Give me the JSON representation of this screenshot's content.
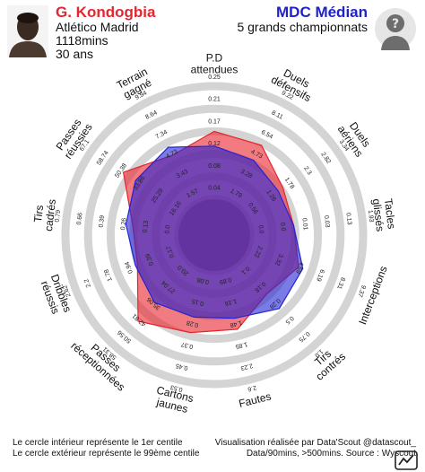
{
  "player": {
    "name": "G. Kondogbia",
    "club": "Atlético Madrid",
    "minutes": "1118mins",
    "age": "30 ans"
  },
  "comparison": {
    "name": "MDC Médian",
    "scope": "5 grands championnats"
  },
  "footer": {
    "left_line1": "Le cercle intérieur représente le 1er centile",
    "left_line2": "Le cercle extérieur représente le 99ème centile",
    "right_line1": "Visualisation réalisée par Data'Scout @datascout_",
    "right_line2": "Data/90mins, >500mins. Source : Wyscout"
  },
  "colors": {
    "player": "#e8232b",
    "comparison": "#2323d6",
    "rings": "#d4d4d4",
    "inner_fill": "#8c8c8c"
  },
  "chart_data": {
    "type": "radar",
    "grid": true,
    "axes": [
      {
        "label": "P.D\nattendues",
        "ticks": [
          "0.04",
          "0.08",
          "0.12",
          "0.17",
          "0.21",
          "0.25"
        ],
        "player": 0.6,
        "comparison": 0.47
      },
      {
        "label": "Duels\ndéfensifs",
        "ticks": [
          "1.79",
          "3.28",
          "4.73",
          "6.54",
          "8.11",
          "9.22"
        ],
        "player": 0.58,
        "comparison": 0.43
      },
      {
        "label": "Duels\naériens",
        "ticks": [
          "0.56",
          "1.26",
          "1.78",
          "2.3",
          "2.82",
          "3.34"
        ],
        "player": 0.42,
        "comparison": 0.37
      },
      {
        "label": "Tacles\nglissés",
        "ticks": [
          "0.0",
          "0.0",
          "0.01",
          "0.03",
          "0.13",
          "1.93"
        ],
        "player": 0.39,
        "comparison": 0.39
      },
      {
        "label": "Interceptions",
        "ticks": [
          "2.22",
          "3.32",
          "4.59",
          "6.19",
          "8.31",
          "9.37"
        ],
        "player": 0.48,
        "comparison": 0.52
      },
      {
        "label": "Tirs\ncontrés",
        "ticks": [
          "0.1",
          "0.18",
          "0.28",
          "0.5",
          "0.75",
          "1.0"
        ],
        "player": 0.38,
        "comparison": 0.55
      },
      {
        "label": "Fautes",
        "ticks": [
          "0.89",
          "1.16",
          "1.48",
          "1.85",
          "2.23",
          "2.6"
        ],
        "player": 0.54,
        "comparison": 0.44
      },
      {
        "label": "Cartons\njaunes",
        "ticks": [
          "0.08",
          "0.15",
          "0.28",
          "0.37",
          "0.45",
          "0.53"
        ],
        "player": 0.57,
        "comparison": 0.43
      },
      {
        "label": "Passes\nréceptionnées",
        "ticks": [
          "20.0",
          "27.04",
          "35.06",
          "42.81",
          "50.56",
          "58.31"
        ],
        "player": 0.7,
        "comparison": 0.48
      },
      {
        "label": "Dribbles\nréussis",
        "ticks": [
          "0.17",
          "0.39",
          "0.94",
          "1.78",
          "2.2",
          "2.62"
        ],
        "player": 0.41,
        "comparison": 0.43
      },
      {
        "label": "Tirs\ncadrés",
        "ticks": [
          "0.0",
          "0.13",
          "0.26",
          "0.39",
          "0.66",
          "0.79"
        ],
        "player": 0.41,
        "comparison": 0.47
      },
      {
        "label": "Passes\nréussies",
        "ticks": [
          "16.16",
          "25.29",
          "33.86",
          "50.38",
          "58.74",
          "67.1"
        ],
        "player": 0.66,
        "comparison": 0.53
      },
      {
        "label": "Terrain\ngagné",
        "ticks": [
          "1.57",
          "3.43",
          "4.73",
          "7.34",
          "8.64",
          "9.94"
        ],
        "player": 0.48,
        "comparison": 0.56
      }
    ]
  }
}
